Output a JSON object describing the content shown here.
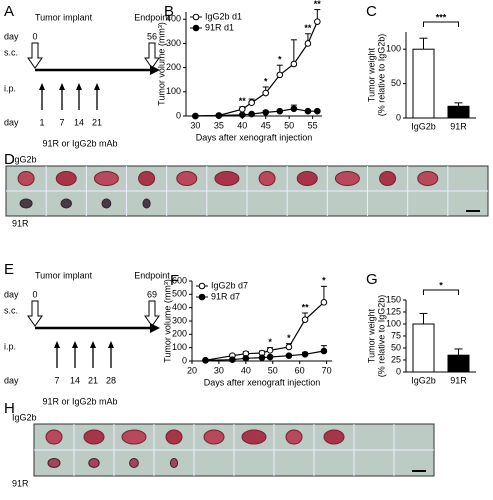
{
  "panels": {
    "A": {
      "label": "A",
      "implant": "Tumor implant",
      "endpoint": "Endpoint",
      "day_label": "day",
      "start_day": 0,
      "end_day": 56,
      "sc": "s.c.",
      "ip": "i.p.",
      "day_label2": "day",
      "doses": [
        1,
        7,
        14,
        21
      ],
      "treatment": "91R or IgG2b mAb"
    },
    "D": {
      "label": "D",
      "top": "IgG2b",
      "bottom": "91R"
    },
    "E": {
      "label": "E",
      "implant": "Tumor implant",
      "endpoint": "Endpoint",
      "day_label": "day",
      "start_day": 0,
      "end_day": 69,
      "sc": "s.c.",
      "ip": "i.p.",
      "day_label2": "day",
      "doses": [
        7,
        14,
        21,
        28
      ],
      "treatment": "91R or IgG2b mAb"
    },
    "H": {
      "label": "H",
      "top": "IgG2b",
      "bottom": "91R"
    }
  },
  "chart_data": [
    {
      "type": "line",
      "label": "B",
      "y_label": "Tumor volume (mm³)",
      "x_label": "Days after xenograft injection",
      "x": [
        30,
        35,
        40,
        42,
        45,
        48,
        51,
        54,
        56
      ],
      "series": [
        {
          "name": "IgG2b d1",
          "color": "#000000",
          "marker": "open",
          "values": [
            0,
            2,
            28,
            55,
            95,
            170,
            215,
            300,
            390
          ],
          "errors": [
            0,
            0,
            10,
            15,
            25,
            40,
            100,
            40,
            50
          ],
          "significance": [
            null,
            null,
            "**",
            null,
            "*",
            "*",
            null,
            "**",
            "**"
          ]
        },
        {
          "name": "91R d1",
          "color": "#000000",
          "marker": "filled",
          "values": [
            0,
            2,
            5,
            8,
            15,
            20,
            30,
            20,
            20
          ],
          "errors": [
            0,
            0,
            3,
            3,
            5,
            5,
            15,
            5,
            5
          ]
        }
      ],
      "xlim": [
        28,
        57
      ],
      "xticks": [
        30,
        35,
        40,
        45,
        50,
        55
      ],
      "ylim": [
        0,
        430
      ],
      "yticks": [
        0,
        100,
        200,
        300,
        400
      ]
    },
    {
      "type": "bar",
      "label": "C",
      "y_label": [
        "Tumor weight",
        "(% relative to IgG2b)"
      ],
      "categories": [
        "IgG2b",
        "91R"
      ],
      "values": [
        100,
        17
      ],
      "errors": [
        16,
        5
      ],
      "colors": [
        "#ffffff",
        "#000000"
      ],
      "significance": "***",
      "ylim": [
        0,
        125
      ],
      "yticks": [
        0,
        50,
        100
      ]
    },
    {
      "type": "line",
      "label": "F",
      "y_label": "Tumor volume (mm³)",
      "x_label": "Days after xenograft injection",
      "x": [
        25,
        35,
        40,
        46,
        49,
        56,
        62,
        69
      ],
      "series": [
        {
          "name": "IgG2b d7",
          "color": "#000000",
          "marker": "open",
          "values": [
            5,
            40,
            55,
            60,
            80,
            105,
            310,
            440
          ],
          "errors": [
            0,
            10,
            15,
            15,
            20,
            25,
            50,
            120
          ],
          "significance": [
            null,
            null,
            null,
            null,
            "*",
            "*",
            "**",
            "*"
          ]
        },
        {
          "name": "91R d7",
          "color": "#000000",
          "marker": "filled",
          "values": [
            5,
            10,
            20,
            25,
            30,
            40,
            50,
            75
          ],
          "errors": [
            0,
            5,
            5,
            5,
            5,
            10,
            15,
            40
          ]
        }
      ],
      "xlim": [
        20,
        72
      ],
      "xticks": [
        20,
        30,
        40,
        50,
        60,
        70
      ],
      "ylim": [
        0,
        600
      ],
      "yticks": [
        0,
        100,
        200,
        300,
        400,
        500,
        600
      ]
    },
    {
      "type": "bar",
      "label": "G",
      "y_label": [
        "Tumor weight",
        "(% relative to IgG2b)"
      ],
      "categories": [
        "IgG2b",
        "91R"
      ],
      "values": [
        100,
        35
      ],
      "errors": [
        22,
        13
      ],
      "colors": [
        "#ffffff",
        "#000000"
      ],
      "significance": "*",
      "ylim": [
        0,
        150
      ],
      "yticks": [
        0,
        25,
        50,
        75,
        100,
        125,
        150
      ]
    }
  ]
}
